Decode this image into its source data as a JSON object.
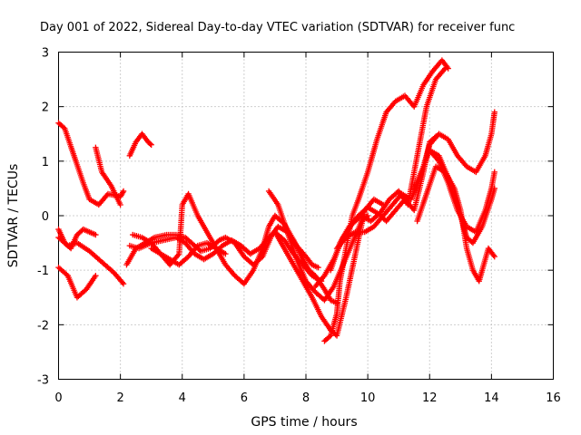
{
  "chart_data": {
    "type": "scatter",
    "title": "Day 001 of 2022, Sidereal Day-to-day VTEC variation (SDTVAR) for receiver func",
    "xlabel": "GPS time / hours",
    "ylabel": "SDTVAR / TECUs",
    "xlim": [
      0,
      16
    ],
    "ylim": [
      -3,
      3
    ],
    "xticks": [
      "0",
      "2",
      "4",
      "6",
      "8",
      "10",
      "12",
      "14",
      "16"
    ],
    "yticks": [
      "3",
      "2",
      "1",
      "0",
      "-1",
      "-2",
      "-3"
    ],
    "grid": true,
    "marker": "+",
    "color": "#ff0000",
    "series": [
      {
        "x": [
          0.0,
          0.3,
          0.6,
          1.0,
          1.4,
          1.8,
          2.1
        ],
        "y": [
          -0.4,
          -0.55,
          -0.5,
          -0.65,
          -0.85,
          -1.05,
          -1.25
        ]
      },
      {
        "x": [
          0.0,
          0.2,
          0.4,
          0.6,
          0.8,
          1.0,
          1.2
        ],
        "y": [
          -0.25,
          -0.5,
          -0.6,
          -0.35,
          -0.25,
          -0.3,
          -0.35
        ]
      },
      {
        "x": [
          0.0,
          0.3,
          0.6,
          0.9,
          1.2
        ],
        "y": [
          -0.95,
          -1.1,
          -1.5,
          -1.35,
          -1.1
        ]
      },
      {
        "x": [
          0.0,
          0.2,
          0.5,
          0.8,
          1.0,
          1.3,
          1.6,
          2.0,
          2.1
        ],
        "y": [
          1.7,
          1.6,
          1.1,
          0.6,
          0.3,
          0.2,
          0.4,
          0.35,
          0.45
        ]
      },
      {
        "x": [
          1.2,
          1.4,
          1.7,
          2.0
        ],
        "y": [
          1.25,
          0.8,
          0.55,
          0.2
        ]
      },
      {
        "x": [
          2.3,
          2.5,
          2.7,
          2.9,
          3.0
        ],
        "y": [
          1.1,
          1.35,
          1.5,
          1.35,
          1.3
        ]
      },
      {
        "x": [
          2.2,
          2.5,
          2.8,
          3.1,
          3.5,
          3.8,
          4.1,
          4.4,
          4.6,
          4.9,
          5.2,
          5.4,
          5.7,
          6.0,
          6.3,
          6.6,
          6.9,
          7.1,
          7.4,
          7.7,
          8.0,
          8.2,
          8.4
        ],
        "y": [
          -0.9,
          -0.6,
          -0.5,
          -0.4,
          -0.35,
          -0.35,
          -0.4,
          -0.55,
          -0.65,
          -0.6,
          -0.45,
          -0.4,
          -0.5,
          -0.75,
          -0.9,
          -0.75,
          -0.35,
          -0.2,
          -0.3,
          -0.55,
          -0.75,
          -0.9,
          -0.95
        ]
      },
      {
        "x": [
          2.3,
          2.6,
          3.0,
          3.4,
          3.8,
          4.1,
          4.4,
          4.7,
          5.0,
          5.3,
          5.6,
          5.9,
          6.2,
          6.5,
          6.8,
          7.0,
          7.3,
          7.6,
          7.9,
          8.2,
          8.5
        ],
        "y": [
          -0.55,
          -0.6,
          -0.5,
          -0.45,
          -0.4,
          -0.5,
          -0.7,
          -0.8,
          -0.7,
          -0.55,
          -0.45,
          -0.55,
          -0.7,
          -0.6,
          -0.4,
          -0.3,
          -0.45,
          -0.7,
          -0.9,
          -1.1,
          -1.2
        ]
      },
      {
        "x": [
          2.4,
          2.7,
          3.0,
          3.3,
          3.6,
          3.9,
          4.0,
          4.2,
          4.5,
          4.8,
          5.1,
          5.4,
          5.7,
          6.0,
          6.3,
          6.6,
          6.8,
          7.0,
          7.3,
          7.6,
          7.9,
          8.1,
          8.3,
          8.6,
          8.8,
          9.0
        ],
        "y": [
          -0.35,
          -0.4,
          -0.5,
          -0.7,
          -0.9,
          -0.7,
          0.2,
          0.4,
          0.0,
          -0.3,
          -0.6,
          -0.9,
          -1.1,
          -1.25,
          -1.0,
          -0.6,
          -0.2,
          0.0,
          -0.15,
          -0.45,
          -0.8,
          -1.0,
          -1.1,
          -1.35,
          -1.55,
          -1.6
        ]
      },
      {
        "x": [
          3.0,
          3.3,
          3.6,
          3.9,
          4.2,
          4.5,
          4.8,
          5.1,
          5.4
        ],
        "y": [
          -0.6,
          -0.7,
          -0.8,
          -0.9,
          -0.75,
          -0.55,
          -0.5,
          -0.6,
          -0.7
        ]
      },
      {
        "x": [
          6.8,
          7.1,
          7.4,
          7.7,
          8.0,
          8.3,
          8.6,
          8.9,
          9.2,
          9.5,
          9.8,
          10.0
        ],
        "y": [
          0.45,
          0.2,
          -0.3,
          -0.8,
          -1.2,
          -1.4,
          -1.55,
          -1.3,
          -0.9,
          -0.5,
          -0.1,
          0.0
        ]
      },
      {
        "x": [
          7.0,
          7.3,
          7.6,
          7.9,
          8.2,
          8.5,
          8.8,
          9.0,
          9.3,
          9.6,
          9.9,
          10.2,
          10.5
        ],
        "y": [
          -0.3,
          -0.6,
          -0.9,
          -1.2,
          -1.5,
          -1.85,
          -2.1,
          -2.2,
          -1.5,
          -0.7,
          0.1,
          0.3,
          0.2
        ]
      },
      {
        "x": [
          8.6,
          8.8,
          9.0,
          9.1,
          9.3,
          9.5,
          9.7,
          10.0,
          10.3,
          10.6,
          10.9,
          11.2,
          11.5,
          11.8,
          12.1,
          12.4,
          12.6
        ],
        "y": [
          -2.3,
          -2.2,
          -1.8,
          -1.2,
          -0.6,
          0.0,
          0.3,
          0.8,
          1.4,
          1.9,
          2.1,
          2.2,
          2.0,
          2.4,
          2.65,
          2.85,
          2.7
        ]
      },
      {
        "x": [
          8.3,
          8.6,
          8.9,
          9.2,
          9.5,
          9.8,
          10.1,
          10.4,
          10.7,
          11.0,
          11.3,
          11.6,
          11.9,
          12.2,
          12.5
        ],
        "y": [
          -1.3,
          -1.1,
          -0.8,
          -0.4,
          -0.15,
          0.0,
          -0.1,
          0.05,
          0.3,
          0.45,
          0.2,
          1.1,
          2.0,
          2.5,
          2.7
        ]
      },
      {
        "x": [
          8.8,
          9.1,
          9.4,
          9.7,
          10.0,
          10.3,
          10.6,
          10.9,
          11.2,
          11.5,
          11.8,
          12.0,
          12.2
        ],
        "y": [
          -1.0,
          -0.5,
          -0.2,
          0.0,
          0.15,
          0.05,
          -0.1,
          0.1,
          0.3,
          0.1,
          0.8,
          1.35,
          1.45
        ]
      },
      {
        "x": [
          9.0,
          9.3,
          9.6,
          9.9,
          10.2,
          10.5,
          10.8,
          11.1,
          11.4,
          11.7,
          12.0,
          12.3,
          12.6,
          12.9,
          13.2,
          13.5,
          13.8,
          14.0,
          14.1
        ],
        "y": [
          -0.6,
          -0.4,
          -0.3,
          -0.3,
          -0.2,
          0.0,
          0.2,
          0.4,
          0.3,
          0.7,
          1.3,
          1.5,
          1.4,
          1.1,
          0.9,
          0.8,
          1.1,
          1.5,
          1.9
        ]
      },
      {
        "x": [
          11.5,
          11.8,
          12.0,
          12.3,
          12.6,
          12.9,
          13.2,
          13.4,
          13.7,
          14.0,
          14.1
        ],
        "y": [
          0.5,
          0.9,
          1.2,
          1.1,
          0.7,
          0.2,
          -0.4,
          -0.5,
          -0.2,
          0.3,
          0.5
        ]
      },
      {
        "x": [
          11.6,
          11.9,
          12.2,
          12.5,
          12.8,
          13.0,
          13.2,
          13.4,
          13.6,
          13.9,
          14.1
        ],
        "y": [
          -0.1,
          0.4,
          0.9,
          0.8,
          0.5,
          0.1,
          -0.6,
          -1.0,
          -1.2,
          -0.6,
          -0.75
        ]
      },
      {
        "x": [
          12.0,
          12.3,
          12.6,
          12.9,
          13.2,
          13.5,
          13.8,
          14.0,
          14.1
        ],
        "y": [
          1.2,
          1.0,
          0.6,
          0.1,
          -0.2,
          -0.3,
          0.1,
          0.5,
          0.8
        ]
      }
    ]
  }
}
